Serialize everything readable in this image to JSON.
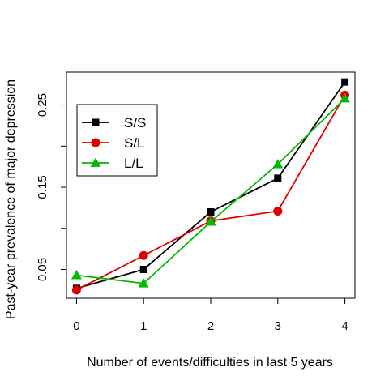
{
  "chart_data": {
    "type": "line",
    "title": "",
    "xlabel": "Number of events/difficulties in last 5 years",
    "ylabel": "Past-year prevalence of major depression",
    "x": [
      0,
      1,
      2,
      3,
      4
    ],
    "xlim": [
      -0.15,
      4.15
    ],
    "ylim": [
      0.015,
      0.29
    ],
    "x_ticks": [
      0,
      1,
      2,
      3,
      4
    ],
    "x_tick_labels": [
      "0",
      "1",
      "2",
      "3",
      "4"
    ],
    "y_ticks": [
      0.05,
      0.1,
      0.15,
      0.2,
      0.25
    ],
    "y_tick_labels": [
      "0.05",
      "",
      "0.15",
      "",
      "0.25"
    ],
    "grid": false,
    "legend_position": "top-left",
    "series": [
      {
        "name": "S/S",
        "color": "#000000",
        "marker": "square",
        "values": [
          0.027,
          0.05,
          0.12,
          0.161,
          0.278
        ]
      },
      {
        "name": "S/L",
        "color": "#dd0000",
        "marker": "circle",
        "values": [
          0.025,
          0.067,
          0.109,
          0.121,
          0.262
        ]
      },
      {
        "name": "L/L",
        "color": "#00bb00",
        "marker": "triangle",
        "values": [
          0.043,
          0.033,
          0.108,
          0.178,
          0.258
        ]
      }
    ]
  }
}
